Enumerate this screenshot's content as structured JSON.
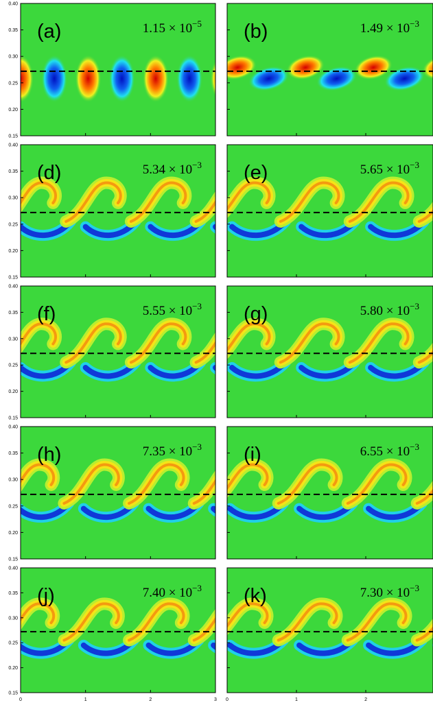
{
  "y_axis": {
    "lim": [
      0.15,
      0.4
    ],
    "ticks": [
      0.15,
      {
        "value": 0.2,
        "label": "0.20"
      },
      0.25,
      {
        "value": 0.3,
        "label": "0.30"
      },
      0.35,
      {
        "value": 0.4,
        "label": "0.40"
      }
    ]
  },
  "x_axis_left": {
    "lim": [
      0,
      3
    ],
    "ticks": [
      0,
      1,
      2,
      3
    ]
  },
  "x_axis_right": {
    "lim": [
      0,
      2.97
    ],
    "ticks": [
      0,
      1,
      2
    ]
  },
  "dashed_line_y": 0.272,
  "panels": [
    {
      "label": "(a)",
      "mantissa": "1.15 × 10",
      "exponent": "−5"
    },
    {
      "label": "(b)",
      "mantissa": "1.49 × 10",
      "exponent": "−3"
    },
    {
      "label": "(d)",
      "mantissa": "5.34 × 10",
      "exponent": "−3"
    },
    {
      "label": "(e)",
      "mantissa": "5.65 × 10",
      "exponent": "−3"
    },
    {
      "label": "(f)",
      "mantissa": "5.55 × 10",
      "exponent": "−3"
    },
    {
      "label": "(g)",
      "mantissa": "5.80 × 10",
      "exponent": "−3"
    },
    {
      "label": "(h)",
      "mantissa": "7.35 × 10",
      "exponent": "−3"
    },
    {
      "label": "(i)",
      "mantissa": "6.55 × 10",
      "exponent": "−3"
    },
    {
      "label": "(j)",
      "mantissa": "7.40 × 10",
      "exponent": "−3"
    },
    {
      "label": "(k)",
      "mantissa": "7.30 × 10",
      "exponent": "−3"
    }
  ]
}
